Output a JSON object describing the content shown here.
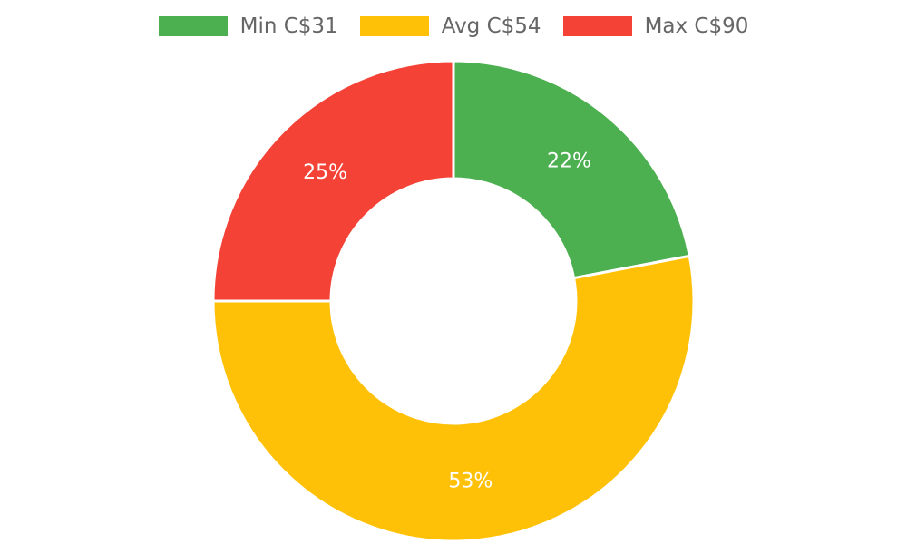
{
  "chart_data": {
    "type": "pie",
    "variant": "doughnut",
    "legend_position": "top",
    "series": [
      {
        "name": "Min C$31",
        "label": "22%",
        "value": 22,
        "color": "#4caf50"
      },
      {
        "name": "Avg C$54",
        "label": "53%",
        "value": 53,
        "color": "#ffc107"
      },
      {
        "name": "Max C$90",
        "label": "25%",
        "value": 25,
        "color": "#f44336"
      }
    ]
  }
}
